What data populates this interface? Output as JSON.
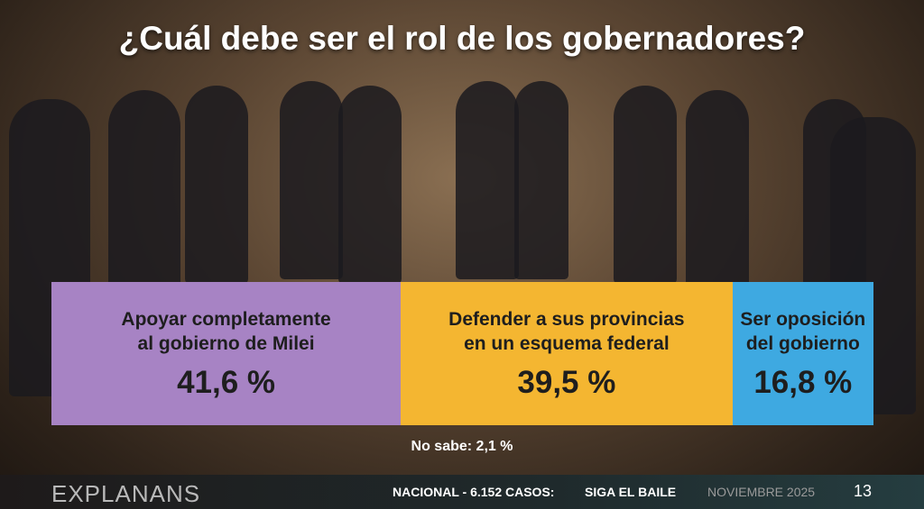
{
  "chart_data": {
    "type": "stacked-bar",
    "title": "¿Cuál debe ser el rol de los gobernadores?",
    "categories": [
      "Apoyar completamente\nal gobierno de Milei",
      "Defender a sus provincias\nen un esquema federal",
      "Ser oposición\ndel gobierno"
    ],
    "values": [
      41.6,
      39.5,
      16.8
    ],
    "value_labels": [
      "41,6 %",
      "39,5 %",
      "16,8 %"
    ],
    "colors": [
      "#a783c4",
      "#f4b631",
      "#3ea9e1"
    ],
    "annotation": "No sabe: 2,1 %"
  },
  "footer": {
    "brand": "EXPLANANS",
    "scope": "NACIONAL - 6.152 CASOS:",
    "source": "SIGA EL BAILE",
    "date": "NOVIEMBRE 2025",
    "page": "13"
  }
}
